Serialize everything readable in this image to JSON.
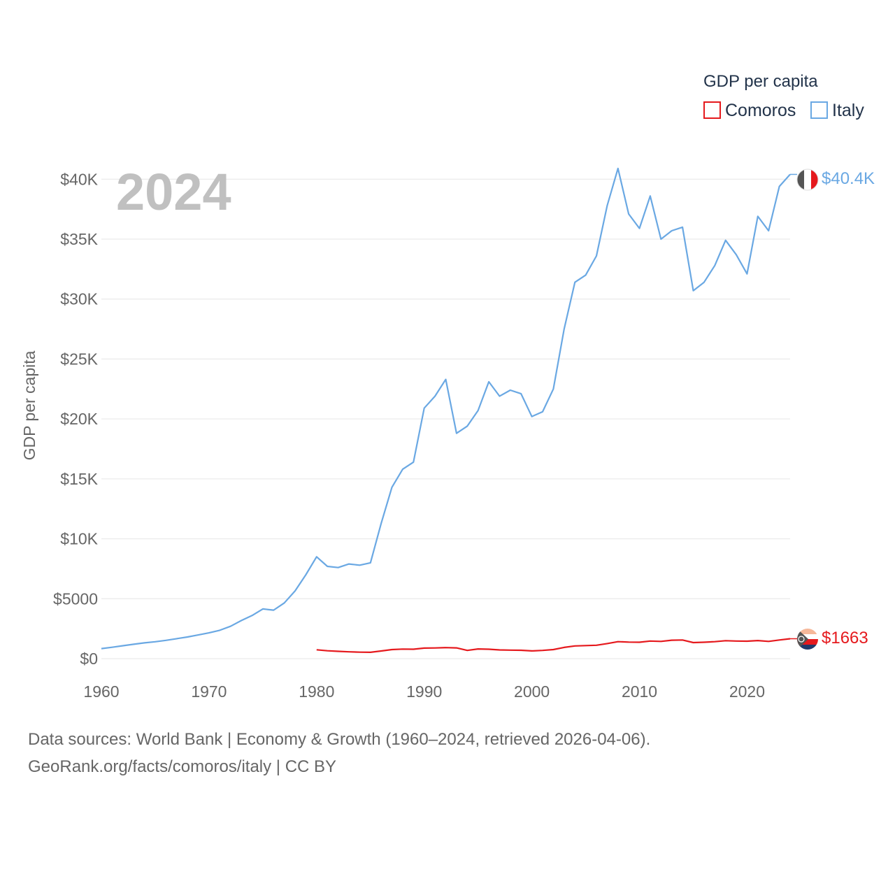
{
  "chart_data": {
    "type": "line",
    "year_label": "2024",
    "ylabel": "GDP per capita",
    "xlabel": "",
    "xlim": [
      1960,
      2024
    ],
    "ylim": [
      0,
      42000
    ],
    "x_ticks": [
      1960,
      1970,
      1980,
      1990,
      2000,
      2010,
      2020
    ],
    "x_tick_labels": [
      "1960",
      "1970",
      "1980",
      "1990",
      "2000",
      "2010",
      "2020"
    ],
    "y_ticks": [
      0,
      5000,
      10000,
      15000,
      20000,
      25000,
      30000,
      35000,
      40000
    ],
    "y_tick_labels": [
      "$0",
      "$5000",
      "$10K",
      "$15K",
      "$20K",
      "$25K",
      "$30K",
      "$35K",
      "$40K"
    ],
    "grid": true,
    "legend": {
      "title": "GDP per capita",
      "position": "top-right",
      "entries": [
        "Comoros",
        "Italy"
      ]
    },
    "series": [
      {
        "name": "Italy",
        "color": "#6aa8e3",
        "end_label": "$40.4K",
        "flag": "italy-flag-icon",
        "x": [
          1960,
          1961,
          1962,
          1963,
          1964,
          1965,
          1966,
          1967,
          1968,
          1969,
          1970,
          1971,
          1972,
          1973,
          1974,
          1975,
          1976,
          1977,
          1978,
          1979,
          1980,
          1981,
          1982,
          1983,
          1984,
          1985,
          1986,
          1987,
          1988,
          1989,
          1990,
          1991,
          1992,
          1993,
          1994,
          1995,
          1996,
          1997,
          1998,
          1999,
          2000,
          2001,
          2002,
          2003,
          2004,
          2005,
          2006,
          2007,
          2008,
          2009,
          2010,
          2011,
          2012,
          2013,
          2014,
          2015,
          2016,
          2017,
          2018,
          2019,
          2020,
          2021,
          2022,
          2023,
          2024
        ],
        "values": [
          840,
          950,
          1080,
          1200,
          1320,
          1410,
          1530,
          1670,
          1810,
          1980,
          2150,
          2370,
          2700,
          3180,
          3600,
          4150,
          4050,
          4650,
          5650,
          7000,
          8500,
          7700,
          7600,
          7900,
          7800,
          8000,
          11300,
          14300,
          15800,
          16400,
          20900,
          21900,
          23300,
          18800,
          19400,
          20700,
          23100,
          21900,
          22400,
          22100,
          20200,
          20600,
          22500,
          27500,
          31400,
          32000,
          33600,
          37800,
          40900,
          37100,
          35900,
          38600,
          35000,
          35700,
          36000,
          30700,
          31400,
          32800,
          34900,
          33700,
          32100,
          36900,
          35700,
          39400,
          40400
        ]
      },
      {
        "name": "Comoros",
        "color": "#e5191d",
        "end_label": "$1663",
        "flag": "comoros-flag-icon",
        "x": [
          1980,
          1981,
          1982,
          1983,
          1984,
          1985,
          1986,
          1987,
          1988,
          1989,
          1990,
          1991,
          1992,
          1993,
          1994,
          1995,
          1996,
          1997,
          1998,
          1999,
          2000,
          2001,
          2002,
          2003,
          2004,
          2005,
          2006,
          2007,
          2008,
          2009,
          2010,
          2011,
          2012,
          2013,
          2014,
          2015,
          2016,
          2017,
          2018,
          2019,
          2020,
          2021,
          2022,
          2023,
          2024
        ],
        "values": [
          740,
          660,
          610,
          570,
          540,
          530,
          640,
          760,
          800,
          790,
          880,
          890,
          920,
          900,
          690,
          810,
          790,
          730,
          710,
          700,
          650,
          690,
          760,
          940,
          1060,
          1090,
          1120,
          1260,
          1420,
          1380,
          1370,
          1470,
          1440,
          1540,
          1560,
          1340,
          1370,
          1420,
          1500,
          1470,
          1460,
          1510,
          1440,
          1560,
          1663
        ]
      }
    ]
  },
  "footer": {
    "line1": "Data sources: World Bank | Economy & Growth (1960–2024, retrieved 2026-04-06).",
    "line2": "GeoRank.org/facts/comoros/italy | CC BY"
  }
}
